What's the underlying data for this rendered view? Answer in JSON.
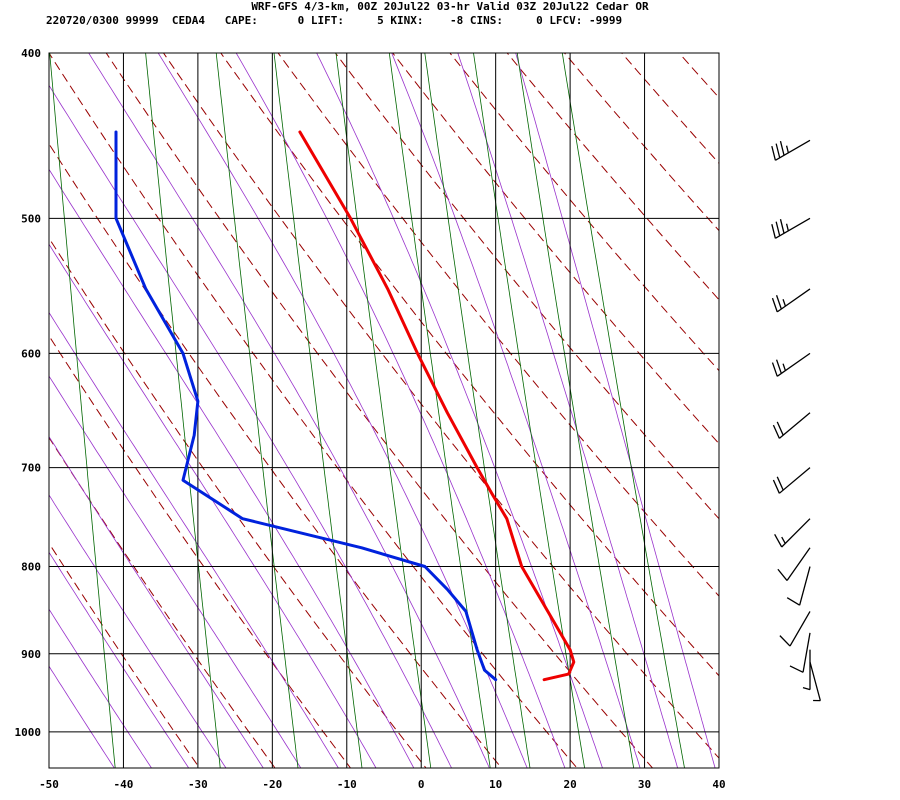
{
  "header": {
    "line1": "WRF-GFS 4/3-km, 00Z 20Jul22 03-hr Valid 03Z 20Jul22 Cedar OR",
    "line2": "220720/0300 99999  CEDA4   CAPE:      0 LIFT:     5 KINX:    -8 CINS:     0 LFCV: -9999"
  },
  "chart_data": {
    "type": "line",
    "title": "WRF-GFS 4/3-km, 00Z 20Jul22 03-hr Valid 03Z 20Jul22 Cedar OR",
    "xlabel": "",
    "ylabel": "",
    "xlim": [
      -50,
      40
    ],
    "ylim": [
      1050,
      400
    ],
    "y_scale": "log",
    "grid": true,
    "x_ticks": [
      -50,
      -40,
      -30,
      -20,
      -10,
      0,
      10,
      20,
      30,
      40
    ],
    "y_ticks": [
      400,
      500,
      600,
      700,
      800,
      900,
      1000
    ],
    "colors": {
      "temperature": "#ee0000",
      "dewpoint": "#0022dd",
      "dry_adiabat": "#990000",
      "moist_adiabat": "#9933cc",
      "mixing_ratio": "#006600",
      "wind_barb": "#000000"
    },
    "series": [
      {
        "key": "temperature",
        "points": [
          [
            -16.3,
            445
          ],
          [
            -9.5,
            500
          ],
          [
            -4.5,
            550
          ],
          [
            -0.5,
            600
          ],
          [
            3.5,
            650
          ],
          [
            7.5,
            700
          ],
          [
            9.5,
            725
          ],
          [
            11.5,
            750
          ],
          [
            12.5,
            775
          ],
          [
            13.5,
            800
          ],
          [
            17.0,
            850
          ],
          [
            20.0,
            895
          ],
          [
            20.5,
            910
          ],
          [
            19.8,
            925
          ],
          [
            16.5,
            932
          ]
        ]
      },
      {
        "key": "dewpoint",
        "points": [
          [
            -41.0,
            445
          ],
          [
            -41.0,
            500
          ],
          [
            -37.0,
            550
          ],
          [
            -32.0,
            600
          ],
          [
            -30.0,
            640
          ],
          [
            -30.5,
            670
          ],
          [
            -32.0,
            712
          ],
          [
            -24.0,
            750
          ],
          [
            -8.0,
            780
          ],
          [
            0.5,
            800
          ],
          [
            3.5,
            825
          ],
          [
            6.0,
            850
          ],
          [
            7.5,
            895
          ],
          [
            8.5,
            920
          ],
          [
            10.0,
            932
          ]
        ]
      }
    ],
    "wind_barbs": [
      {
        "pressure": 450,
        "direction": 240,
        "speed_kt": 35
      },
      {
        "pressure": 500,
        "direction": 240,
        "speed_kt": 35
      },
      {
        "pressure": 550,
        "direction": 235,
        "speed_kt": 25
      },
      {
        "pressure": 600,
        "direction": 235,
        "speed_kt": 25
      },
      {
        "pressure": 650,
        "direction": 230,
        "speed_kt": 20
      },
      {
        "pressure": 700,
        "direction": 230,
        "speed_kt": 20
      },
      {
        "pressure": 750,
        "direction": 225,
        "speed_kt": 15
      },
      {
        "pressure": 780,
        "direction": 215,
        "speed_kt": 10
      },
      {
        "pressure": 800,
        "direction": 195,
        "speed_kt": 10
      },
      {
        "pressure": 850,
        "direction": 210,
        "speed_kt": 10
      },
      {
        "pressure": 875,
        "direction": 190,
        "speed_kt": 10
      },
      {
        "pressure": 895,
        "direction": 180,
        "speed_kt": 5
      },
      {
        "pressure": 910,
        "direction": 165,
        "speed_kt": 5
      }
    ]
  }
}
